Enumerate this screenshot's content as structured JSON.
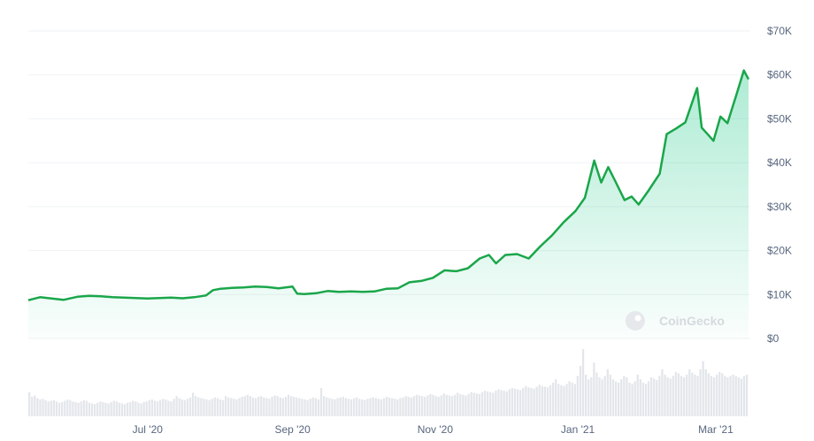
{
  "chart_data": {
    "type": "area",
    "title": "",
    "xlabel": "",
    "ylabel": "",
    "ylim": [
      0,
      70000
    ],
    "y_ticks": [
      0,
      10000,
      20000,
      30000,
      40000,
      50000,
      60000,
      70000
    ],
    "y_tick_labels": [
      "$0",
      "$10K",
      "$20K",
      "$30K",
      "$40K",
      "$50K",
      "$60K",
      "$70K"
    ],
    "x_range": [
      "2020-05-11",
      "2021-03-15"
    ],
    "x_ticks": [
      {
        "date": "2020-07-01",
        "label": "Jul '20"
      },
      {
        "date": "2020-09-01",
        "label": "Sep '20"
      },
      {
        "date": "2020-11-01",
        "label": "Nov '20"
      },
      {
        "date": "2021-01-01",
        "label": "Jan '21"
      },
      {
        "date": "2021-03-01",
        "label": "Mar '21"
      }
    ],
    "grid": true,
    "legend": "none",
    "series": [
      {
        "color": "#16c784",
        "line_color": "#1aa64a",
        "points": [
          [
            "2020-05-11",
            8700
          ],
          [
            "2020-05-16",
            9400
          ],
          [
            "2020-05-21",
            9100
          ],
          [
            "2020-05-26",
            8800
          ],
          [
            "2020-06-01",
            9500
          ],
          [
            "2020-06-06",
            9700
          ],
          [
            "2020-06-11",
            9600
          ],
          [
            "2020-06-16",
            9400
          ],
          [
            "2020-06-21",
            9300
          ],
          [
            "2020-06-26",
            9200
          ],
          [
            "2020-07-01",
            9100
          ],
          [
            "2020-07-06",
            9200
          ],
          [
            "2020-07-11",
            9300
          ],
          [
            "2020-07-16",
            9150
          ],
          [
            "2020-07-21",
            9400
          ],
          [
            "2020-07-26",
            9800
          ],
          [
            "2020-07-29",
            11000
          ],
          [
            "2020-08-01",
            11300
          ],
          [
            "2020-08-06",
            11500
          ],
          [
            "2020-08-11",
            11600
          ],
          [
            "2020-08-16",
            11800
          ],
          [
            "2020-08-21",
            11700
          ],
          [
            "2020-08-26",
            11400
          ],
          [
            "2020-09-01",
            11800
          ],
          [
            "2020-09-03",
            10200
          ],
          [
            "2020-09-06",
            10100
          ],
          [
            "2020-09-11",
            10300
          ],
          [
            "2020-09-16",
            10800
          ],
          [
            "2020-09-21",
            10600
          ],
          [
            "2020-09-26",
            10700
          ],
          [
            "2020-10-01",
            10600
          ],
          [
            "2020-10-06",
            10700
          ],
          [
            "2020-10-11",
            11300
          ],
          [
            "2020-10-16",
            11400
          ],
          [
            "2020-10-21",
            12800
          ],
          [
            "2020-10-26",
            13100
          ],
          [
            "2020-10-31",
            13800
          ],
          [
            "2020-11-05",
            15500
          ],
          [
            "2020-11-10",
            15300
          ],
          [
            "2020-11-15",
            16000
          ],
          [
            "2020-11-20",
            18200
          ],
          [
            "2020-11-24",
            19000
          ],
          [
            "2020-11-27",
            17100
          ],
          [
            "2020-12-01",
            19000
          ],
          [
            "2020-12-06",
            19200
          ],
          [
            "2020-12-11",
            18200
          ],
          [
            "2020-12-16",
            21000
          ],
          [
            "2020-12-21",
            23500
          ],
          [
            "2020-12-26",
            26500
          ],
          [
            "2020-12-31",
            29000
          ],
          [
            "2021-01-04",
            32000
          ],
          [
            "2021-01-08",
            40500
          ],
          [
            "2021-01-11",
            35500
          ],
          [
            "2021-01-14",
            39000
          ],
          [
            "2021-01-17",
            35800
          ],
          [
            "2021-01-21",
            31500
          ],
          [
            "2021-01-24",
            32300
          ],
          [
            "2021-01-27",
            30500
          ],
          [
            "2021-01-31",
            33500
          ],
          [
            "2021-02-05",
            37500
          ],
          [
            "2021-02-08",
            46500
          ],
          [
            "2021-02-12",
            47800
          ],
          [
            "2021-02-16",
            49200
          ],
          [
            "2021-02-21",
            57000
          ],
          [
            "2021-02-23",
            48000
          ],
          [
            "2021-02-26",
            46200
          ],
          [
            "2021-02-28",
            45000
          ],
          [
            "2021-03-03",
            50500
          ],
          [
            "2021-03-06",
            49000
          ],
          [
            "2021-03-10",
            55800
          ],
          [
            "2021-03-13",
            61000
          ],
          [
            "2021-03-15",
            59000
          ]
        ]
      }
    ],
    "volume": {
      "color": "#e3e6ea",
      "max_relative": 1.0,
      "values": [
        0.36,
        0.29,
        0.31,
        0.27,
        0.25,
        0.26,
        0.24,
        0.22,
        0.23,
        0.24,
        0.22,
        0.2,
        0.21,
        0.23,
        0.25,
        0.24,
        0.22,
        0.21,
        0.2,
        0.22,
        0.24,
        0.23,
        0.2,
        0.19,
        0.18,
        0.2,
        0.22,
        0.21,
        0.2,
        0.19,
        0.21,
        0.23,
        0.22,
        0.2,
        0.19,
        0.18,
        0.2,
        0.21,
        0.23,
        0.22,
        0.2,
        0.19,
        0.21,
        0.22,
        0.24,
        0.25,
        0.23,
        0.22,
        0.24,
        0.26,
        0.25,
        0.23,
        0.22,
        0.26,
        0.3,
        0.27,
        0.25,
        0.24,
        0.26,
        0.28,
        0.35,
        0.3,
        0.28,
        0.27,
        0.26,
        0.25,
        0.24,
        0.26,
        0.28,
        0.27,
        0.25,
        0.24,
        0.3,
        0.28,
        0.27,
        0.26,
        0.25,
        0.27,
        0.29,
        0.3,
        0.32,
        0.3,
        0.28,
        0.27,
        0.29,
        0.3,
        0.28,
        0.27,
        0.26,
        0.29,
        0.31,
        0.3,
        0.28,
        0.27,
        0.29,
        0.32,
        0.3,
        0.29,
        0.28,
        0.27,
        0.26,
        0.25,
        0.24,
        0.26,
        0.28,
        0.27,
        0.25,
        0.42,
        0.3,
        0.28,
        0.27,
        0.26,
        0.25,
        0.27,
        0.28,
        0.29,
        0.27,
        0.26,
        0.25,
        0.27,
        0.28,
        0.26,
        0.25,
        0.24,
        0.26,
        0.27,
        0.28,
        0.27,
        0.26,
        0.25,
        0.27,
        0.29,
        0.28,
        0.27,
        0.26,
        0.25,
        0.27,
        0.28,
        0.3,
        0.29,
        0.28,
        0.3,
        0.32,
        0.31,
        0.3,
        0.29,
        0.31,
        0.33,
        0.32,
        0.3,
        0.29,
        0.31,
        0.34,
        0.32,
        0.31,
        0.3,
        0.32,
        0.35,
        0.33,
        0.32,
        0.31,
        0.33,
        0.36,
        0.35,
        0.34,
        0.33,
        0.36,
        0.38,
        0.37,
        0.36,
        0.35,
        0.38,
        0.4,
        0.39,
        0.38,
        0.37,
        0.4,
        0.42,
        0.41,
        0.4,
        0.39,
        0.42,
        0.45,
        0.43,
        0.42,
        0.41,
        0.44,
        0.47,
        0.45,
        0.44,
        0.43,
        0.46,
        0.5,
        0.55,
        0.48,
        0.46,
        0.45,
        0.48,
        0.52,
        0.5,
        0.48,
        0.6,
        0.75,
        1.0,
        0.62,
        0.55,
        0.58,
        0.8,
        0.65,
        0.58,
        0.55,
        0.6,
        0.7,
        0.62,
        0.55,
        0.52,
        0.5,
        0.55,
        0.6,
        0.58,
        0.5,
        0.48,
        0.52,
        0.62,
        0.55,
        0.5,
        0.48,
        0.52,
        0.58,
        0.56,
        0.54,
        0.6,
        0.7,
        0.62,
        0.58,
        0.56,
        0.6,
        0.66,
        0.64,
        0.6,
        0.58,
        0.62,
        0.7,
        0.65,
        0.62,
        0.6,
        0.7,
        0.82,
        0.7,
        0.64,
        0.6,
        0.58,
        0.62,
        0.66,
        0.64,
        0.6,
        0.58,
        0.6,
        0.62,
        0.6,
        0.58,
        0.56,
        0.6,
        0.62
      ]
    }
  },
  "watermark": {
    "text": "CoinGecko"
  }
}
